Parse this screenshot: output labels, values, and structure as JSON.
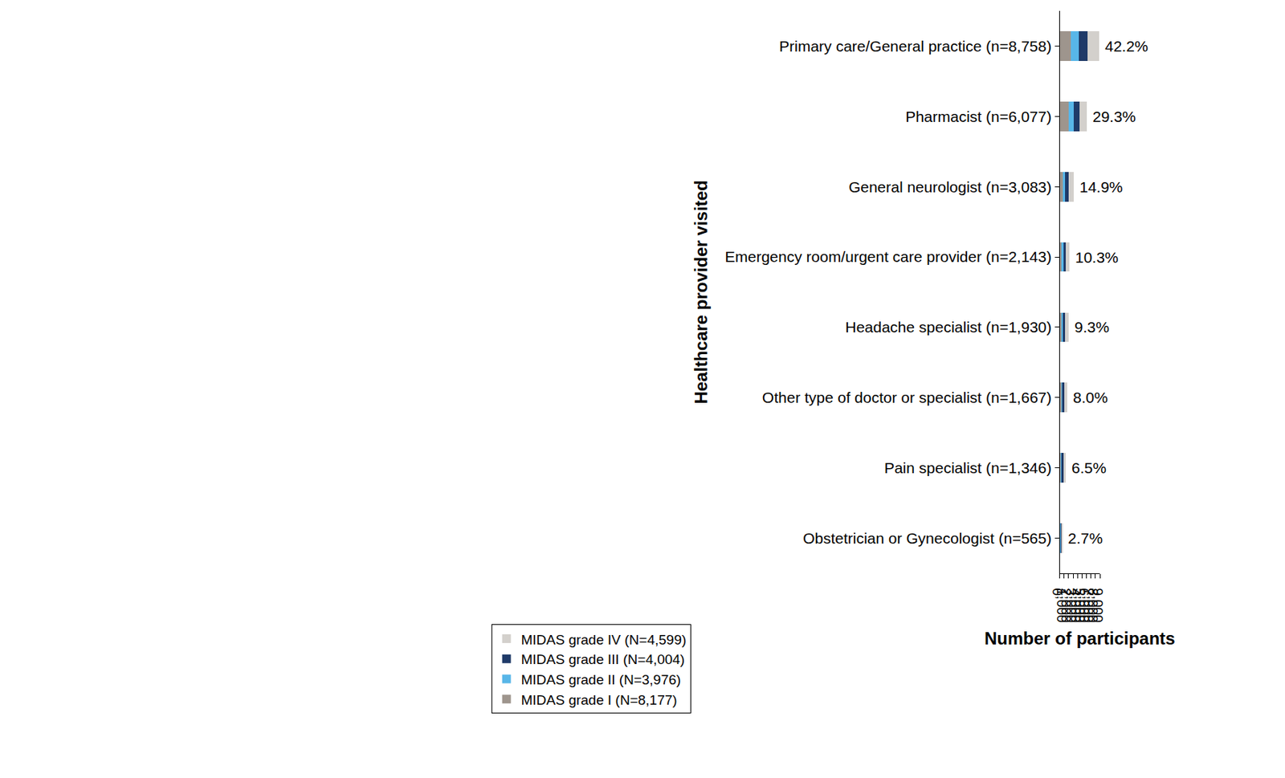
{
  "chart_data": {
    "type": "bar",
    "orientation": "horizontal",
    "stacked": true,
    "grid": false,
    "legend": "bottom",
    "x_label": "Number of participants",
    "y_label": "Healthcare provider visited",
    "categories": [
      "Primary care/General practice (n=8,758)",
      "Pharmacist (n=6,077)",
      "General neurologist (n=3,083)",
      "Emergency room/urgent care provider (n=2,143)",
      "Headache specialist (n=1,930)",
      "Other type of doctor or specialist (n=1,667)",
      "Pain specialist (n=1,346)",
      "Obstetrician or Gynecologist (n=565)"
    ],
    "series": [
      {
        "name": "MIDAS grade I (N=8,177)",
        "color": "#9e958d",
        "values": [
          2536,
          1955,
          629,
          436,
          329,
          339,
          194,
          106
        ]
      },
      {
        "name": "MIDAS grade II (N=3,976)",
        "color": "#58b6e8",
        "values": [
          1684,
          1201,
          581,
          367,
          368,
          281,
          261,
          117
        ]
      },
      {
        "name": "MIDAS grade III (N=4,004)",
        "color": "#1f3a68",
        "values": [
          1946,
          1297,
          765,
          523,
          503,
          377,
          348,
          125
        ]
      },
      {
        "name": "MIDAS grade IV (N=4,599)",
        "color": "#d3d0cc",
        "values": [
          2592,
          1624,
          1108,
          817,
          730,
          670,
          543,
          217
        ]
      }
    ],
    "share_labels": [
      "42.2%",
      "29.3%",
      "14.9%",
      "10.3%",
      "9.3%",
      "8.0%",
      "6.5%",
      "2.7%"
    ],
    "xlim": [
      0,
      9000
    ],
    "xticks": [
      0,
      {
        "value": 1000,
        "label": "1,000"
      },
      {
        "value": 2000,
        "label": "2,000"
      },
      {
        "value": 3000,
        "label": "3,000"
      },
      {
        "value": 4000,
        "label": "4,000"
      },
      {
        "value": 5000,
        "label": "5,000"
      },
      {
        "value": 6000,
        "label": "6,000"
      },
      {
        "value": 7000,
        "label": "7,000"
      },
      {
        "value": 8000,
        "label": "8,000"
      },
      {
        "value": 9000,
        "label": "9,000"
      }
    ]
  }
}
